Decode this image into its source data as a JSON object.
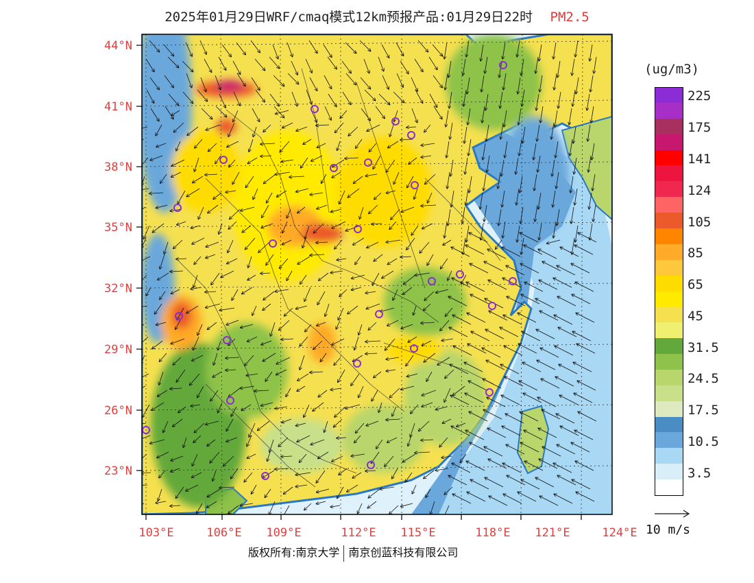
{
  "title": {
    "text": "2025年01月29日WRF/cmaq模式12km预报产品:01月29日22时",
    "pollutant": "PM2.5"
  },
  "map": {
    "lat_labels": [
      "44°N",
      "41°N",
      "38°N",
      "35°N",
      "32°N",
      "29°N",
      "26°N",
      "23°N"
    ],
    "lon_labels": [
      "103°E",
      "106°E",
      "109°E",
      "112°E",
      "115°E",
      "118°E",
      "121°E",
      "124°E"
    ],
    "land_color": "#f2e36a",
    "sea_color": "#dff1fa",
    "coast_color": "#2a78c2"
  },
  "legend": {
    "unit": "(ug/m3)",
    "bins": [
      {
        "color": "#8c2cd6",
        "label": "225"
      },
      {
        "color": "#a72fc8",
        "label": ""
      },
      {
        "color": "#a8305e",
        "label": "175"
      },
      {
        "color": "#c8186e",
        "label": ""
      },
      {
        "color": "#ff0000",
        "label": "141"
      },
      {
        "color": "#ee1440",
        "label": ""
      },
      {
        "color": "#f02850",
        "label": "124"
      },
      {
        "color": "#ff6464",
        "label": ""
      },
      {
        "color": "#ea5a2a",
        "label": "105"
      },
      {
        "color": "#ff8400",
        "label": ""
      },
      {
        "color": "#ffaa28",
        "label": "85"
      },
      {
        "color": "#ffc83c",
        "label": ""
      },
      {
        "color": "#ffdc00",
        "label": "65"
      },
      {
        "color": "#ffea00",
        "label": ""
      },
      {
        "color": "#f5e050",
        "label": "45"
      },
      {
        "color": "#f0f070",
        "label": ""
      },
      {
        "color": "#62a83a",
        "label": "31.5"
      },
      {
        "color": "#8ec24a",
        "label": ""
      },
      {
        "color": "#b8d66c",
        "label": "24.5"
      },
      {
        "color": "#c8e08a",
        "label": ""
      },
      {
        "color": "#dfe9bf",
        "label": "17.5"
      },
      {
        "color": "#4a8cc4",
        "label": ""
      },
      {
        "color": "#6aa8dc",
        "label": "10.5"
      },
      {
        "color": "#a8d8f4",
        "label": ""
      },
      {
        "color": "#d8eef8",
        "label": "3.5"
      },
      {
        "color": "#ffffff",
        "label": ""
      }
    ]
  },
  "scale": {
    "label": "10 m/s"
  },
  "footer": {
    "left": "版权所有:南京大学",
    "right": "南京创蓝科技有限公司"
  }
}
